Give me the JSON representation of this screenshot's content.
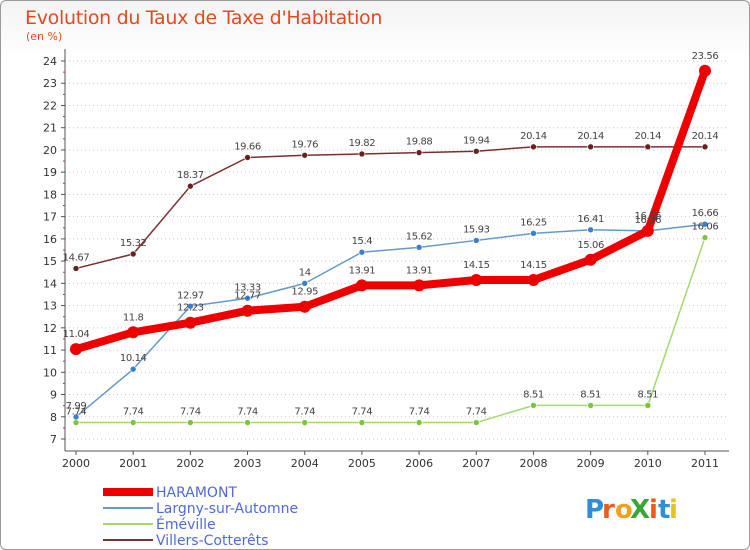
{
  "header": {
    "title": "Evolution du Taux de Taxe d'Habitation",
    "subtitle": "(en %)"
  },
  "logo": {
    "text": "ProXiti"
  },
  "chart_data": {
    "type": "line",
    "title": "Evolution du Taux de Taxe d'Habitation",
    "ylabel": "(en %)",
    "xlabel": "",
    "x": [
      "2000",
      "2001",
      "2002",
      "2003",
      "2004",
      "2005",
      "2006",
      "2007",
      "2008",
      "2009",
      "2010",
      "2011"
    ],
    "ylim": [
      7,
      24
    ],
    "yticks": [
      "7",
      "8",
      "9",
      "10",
      "11",
      "12",
      "13",
      "14",
      "15",
      "16",
      "17",
      "18",
      "19",
      "20",
      "21",
      "22",
      "23",
      "24"
    ],
    "grid": "horizontal dotted",
    "legend_position": "bottom-left",
    "series": [
      {
        "name": "HARAMONT",
        "color": "#ee0000",
        "point_color": "#ee0000",
        "label_color": "#444444",
        "emphasis": "thick",
        "values": [
          11.04,
          11.8,
          12.23,
          12.77,
          12.95,
          13.91,
          13.91,
          14.15,
          14.15,
          15.06,
          16.36,
          23.56
        ],
        "labels": [
          "11.04",
          "11.8",
          "12.23",
          "12.77",
          "12.95",
          "13.91",
          "13.91",
          "14.15",
          "14.15",
          "15.06",
          "16.36",
          "23.56"
        ]
      },
      {
        "name": "Largny-sur-Automne",
        "color": "#6699cc",
        "point_color": "#3a7fcf",
        "label_color": "#444444",
        "emphasis": "thin",
        "values": [
          7.99,
          10.14,
          12.97,
          13.33,
          14,
          15.4,
          15.62,
          15.93,
          16.25,
          16.41,
          16.36,
          16.66
        ],
        "labels": [
          "7.99",
          "10.14",
          "12.97",
          "13.33",
          "14",
          "15.4",
          "15.62",
          "15.93",
          "16.25",
          "16.41",
          "16.36",
          "16.66"
        ]
      },
      {
        "name": "Éméville",
        "color": "#a6d86e",
        "point_color": "#7cc440",
        "label_color": "#444444",
        "emphasis": "thin",
        "values": [
          7.74,
          7.74,
          7.74,
          7.74,
          7.74,
          7.74,
          7.74,
          7.74,
          8.51,
          8.51,
          8.51,
          16.06
        ],
        "labels": [
          "7.74",
          "7.74",
          "7.74",
          "7.74",
          "7.74",
          "7.74",
          "7.74",
          "7.74",
          "8.51",
          "8.51",
          "8.51",
          "16.06"
        ]
      },
      {
        "name": "Villers-Cotterêts",
        "color": "#7a3030",
        "point_color": "#6a2020",
        "label_color": "#444444",
        "emphasis": "thin",
        "values": [
          14.67,
          15.32,
          18.37,
          19.66,
          19.76,
          19.82,
          19.88,
          19.94,
          20.14,
          20.14,
          20.14,
          20.14
        ],
        "labels": [
          "14.67",
          "15.32",
          "18.37",
          "19.66",
          "19.76",
          "19.82",
          "19.88",
          "19.94",
          "20.14",
          "20.14",
          "20.14",
          "20.14"
        ]
      }
    ]
  }
}
